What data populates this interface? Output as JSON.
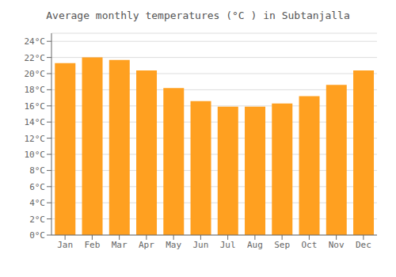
{
  "chart_data": {
    "type": "bar",
    "title": "Average monthly temperatures (°C ) in Subtanjalla",
    "categories": [
      "Jan",
      "Feb",
      "Mar",
      "Apr",
      "May",
      "Jun",
      "Jul",
      "Aug",
      "Sep",
      "Oct",
      "Nov",
      "Dec"
    ],
    "values": [
      21.3,
      22.0,
      21.7,
      20.4,
      18.2,
      16.6,
      15.9,
      15.9,
      16.3,
      17.2,
      18.6,
      20.4
    ],
    "color": "#FFA020",
    "ylim": [
      0,
      25
    ],
    "yticks": [
      {
        "value": 0,
        "label": "0°C"
      },
      {
        "value": 2,
        "label": "2°C"
      },
      {
        "value": 4,
        "label": "4°C"
      },
      {
        "value": 6,
        "label": "6°C"
      },
      {
        "value": 8,
        "label": "8°C"
      },
      {
        "value": 10,
        "label": "10°C"
      },
      {
        "value": 12,
        "label": "12°C"
      },
      {
        "value": 14,
        "label": "14°C"
      },
      {
        "value": 16,
        "label": "16°C"
      },
      {
        "value": 18,
        "label": "18°C"
      },
      {
        "value": 20,
        "label": "20°C"
      },
      {
        "value": 22,
        "label": "22°C"
      },
      {
        "value": 24,
        "label": "24°C"
      }
    ],
    "grid": true
  }
}
